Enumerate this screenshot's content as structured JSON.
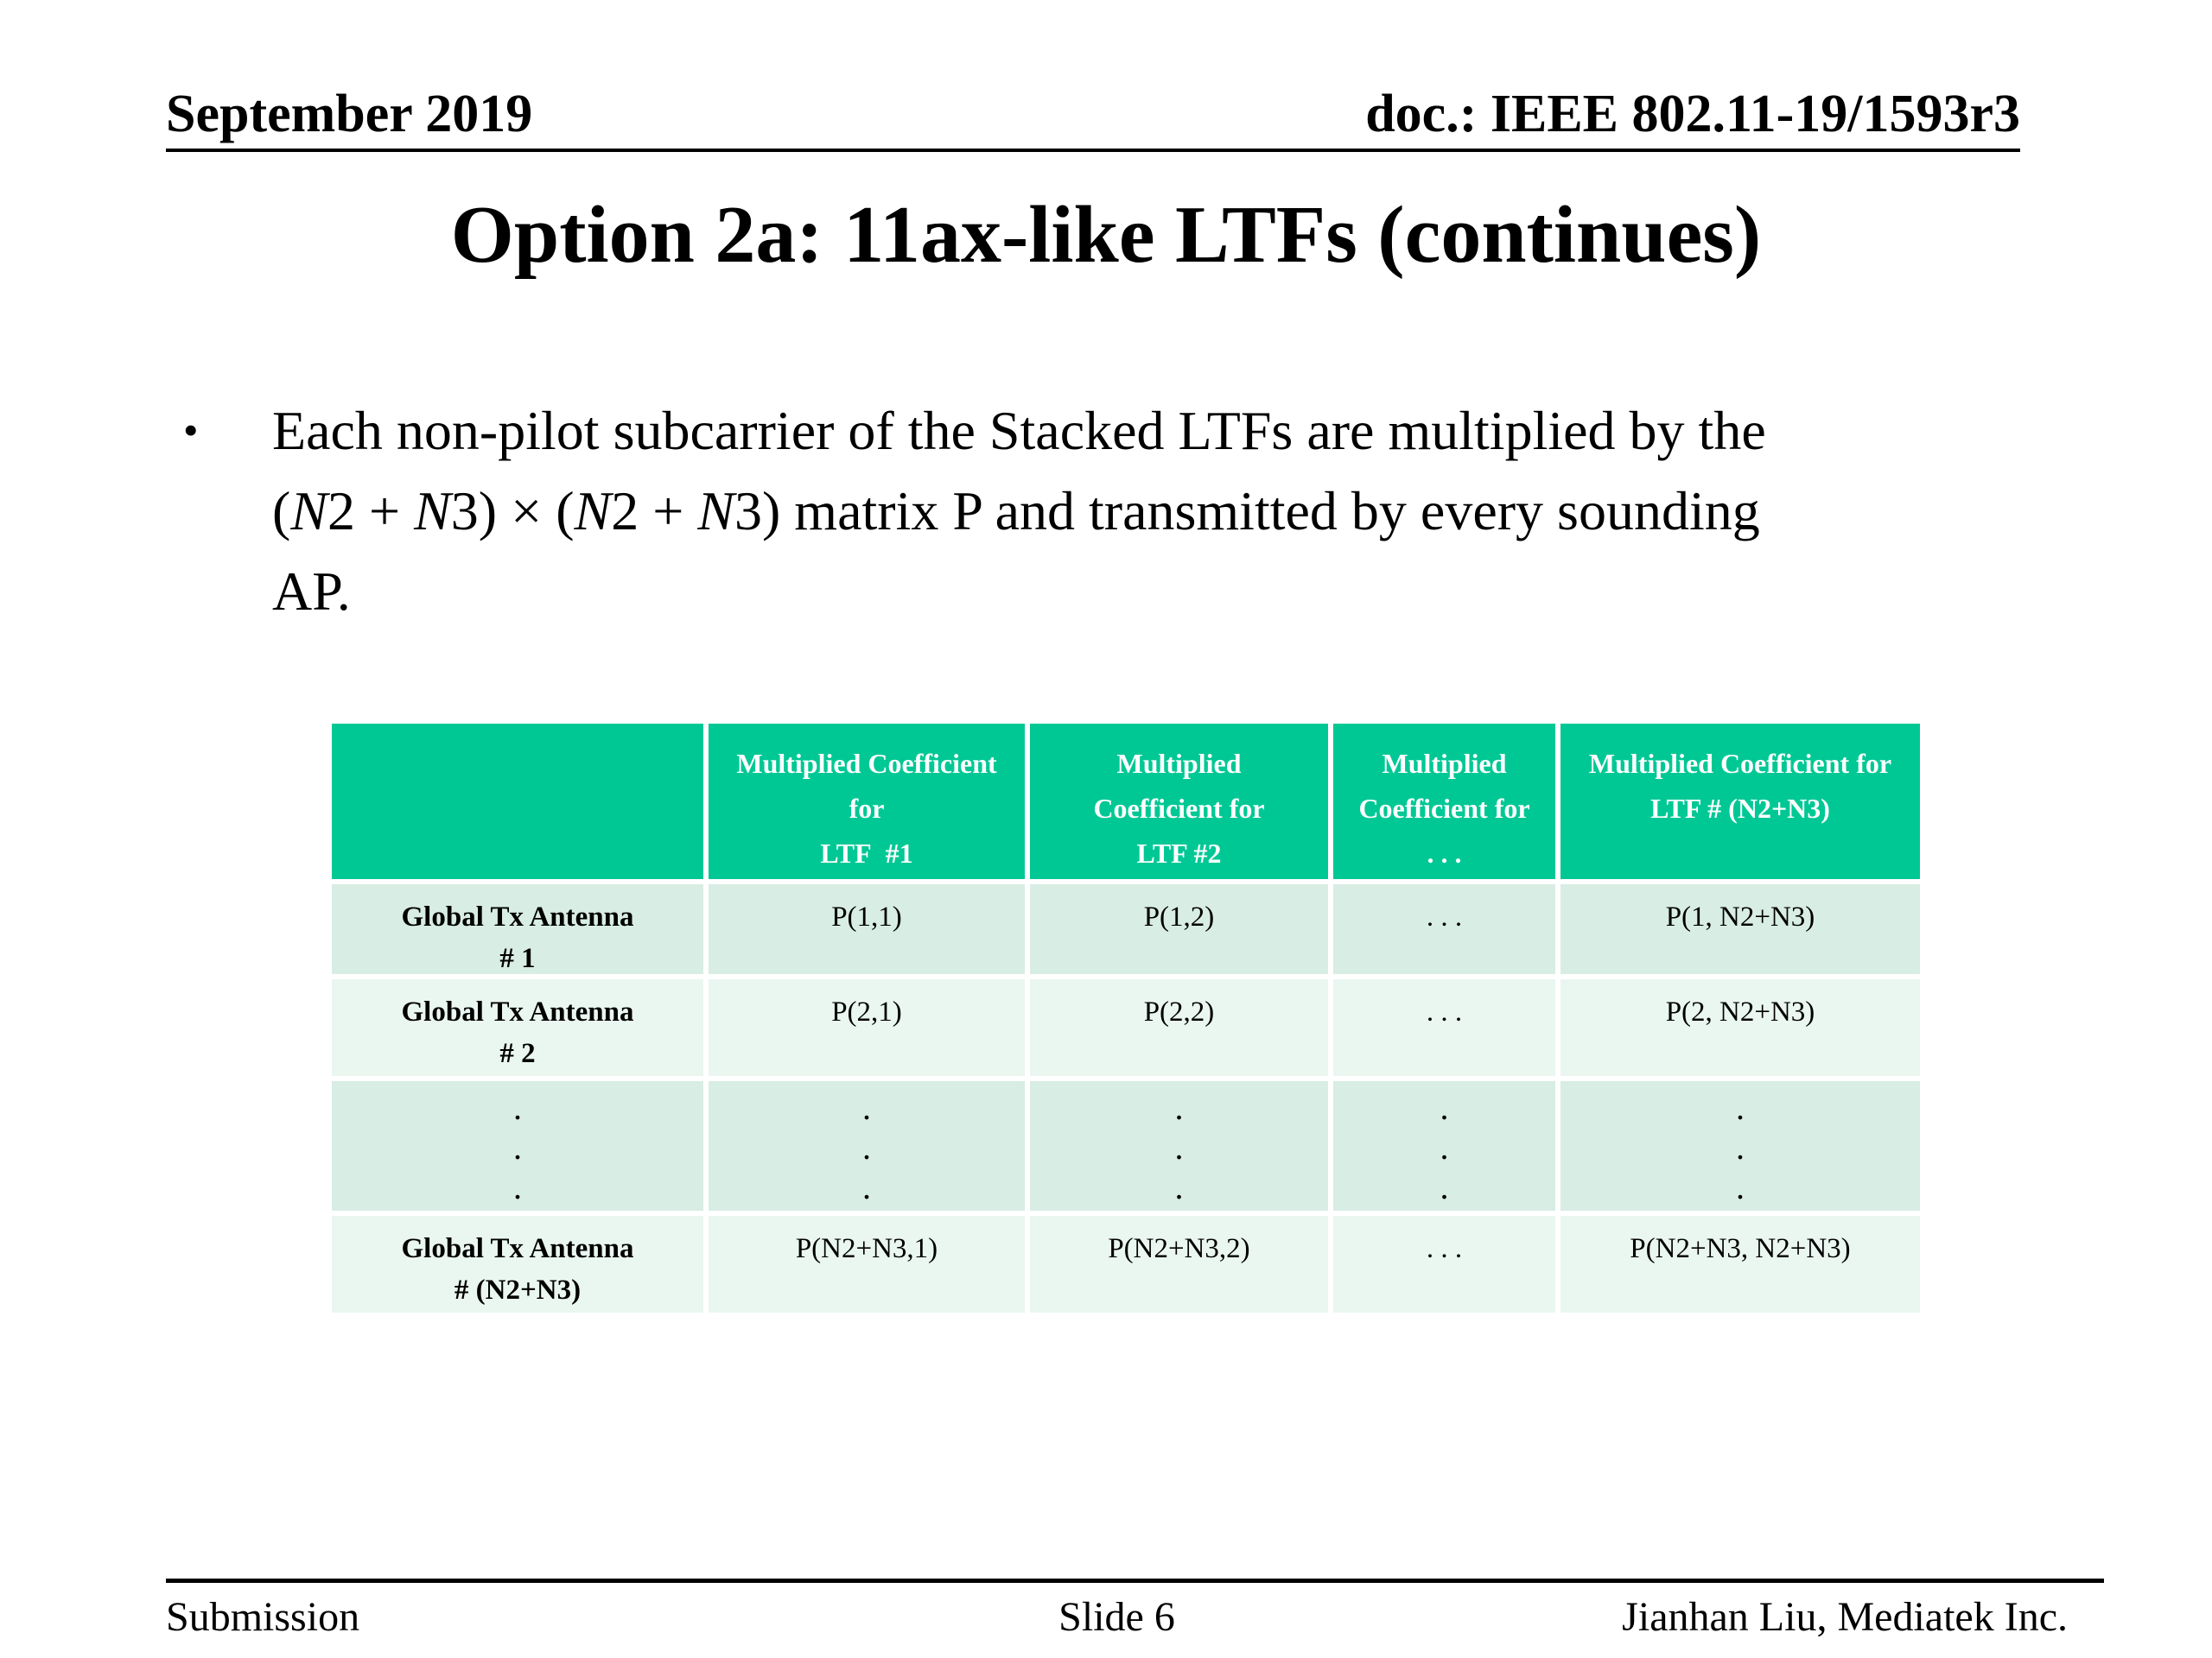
{
  "slide": {
    "header": {
      "left": "September 2019",
      "right": "doc.: IEEE 802.11-19/1593r3"
    },
    "title": "Option 2a: 11ax-like LTFs (continues)",
    "bullet": {
      "marker": "•",
      "lines": [
        [
          {
            "t": "Each non-pilot subcarrier of the Stacked LTFs are multiplied by the"
          }
        ],
        [
          {
            "t": "("
          },
          {
            "t": "N",
            "i": true
          },
          {
            "t": "2 + "
          },
          {
            "t": "N",
            "i": true
          },
          {
            "t": "3) × ("
          },
          {
            "t": "N",
            "i": true
          },
          {
            "t": "2 + "
          },
          {
            "t": "N",
            "i": true
          },
          {
            "t": "3)"
          },
          {
            "t": " matrix P and transmitted by every sounding"
          }
        ],
        [
          {
            "t": "AP."
          }
        ]
      ]
    },
    "table": {
      "header_row": [
        "",
        "Multiplied Coefficient\nfor\nLTF  #1",
        "Multiplied\nCoefficient for\nLTF #2",
        "Multiplied\nCoefficient for\n. . .",
        "Multiplied Coefficient for\nLTF # (N2+N3)"
      ],
      "rows": [
        {
          "label": "Global Tx Antenna\n# 1",
          "cells": [
            "P(1,1)",
            "P(1,2)",
            ". . .",
            "P(1, N2+N3)"
          ]
        },
        {
          "label": "Global Tx Antenna\n# 2",
          "cells": [
            "P(2,1)",
            "P(2,2)",
            ". . .",
            "P(2, N2+N3)"
          ]
        },
        {
          "label": ".\n.\n.",
          "dots": true,
          "cells": [
            ".\n.\n.",
            ".\n.\n.",
            ".\n.\n.",
            ".\n.\n."
          ]
        },
        {
          "label": "Global Tx Antenna\n# (N2+N3)",
          "cells": [
            "P(N2+N3,1)",
            "P(N2+N3,2)",
            ". . .",
            "P(N2+N3, N2+N3)"
          ]
        }
      ]
    },
    "footer": {
      "left": "Submission",
      "center": "Slide 6",
      "right": "Jianhan Liu, Mediatek Inc."
    },
    "colors": {
      "table_header_green": "#00C895",
      "row_mint": "#D8EDE3",
      "row_light": "#EAF6F0",
      "header_text_white": "#FFFFFF",
      "text_black": "#000000"
    }
  }
}
